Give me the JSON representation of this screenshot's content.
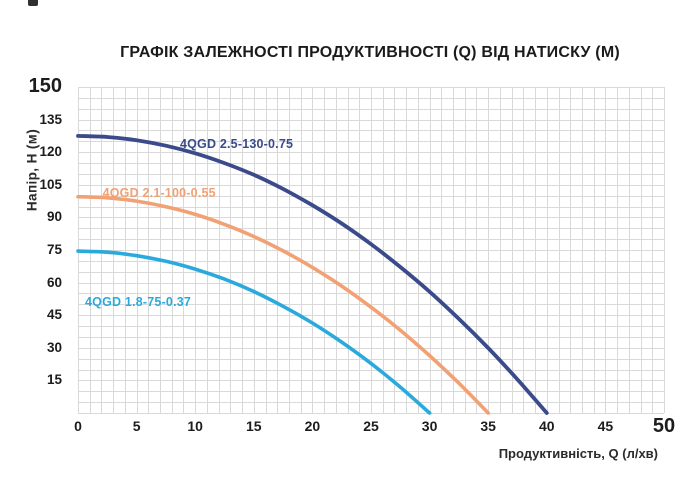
{
  "decorations": {
    "top_left_mark_color": "#2f2f2f"
  },
  "chart_data": {
    "type": "line",
    "title": "ГРАФІК ЗАЛЕЖНОСТІ ПРОДУКТИВНОСТІ (Q) ВІД НАТИСКУ (М)",
    "xlabel": "Продуктивність, Q (л/хв)",
    "ylabel": "Напір, H (м)",
    "xlim": [
      0,
      50
    ],
    "ylim": [
      0,
      150
    ],
    "x_ticks": [
      0,
      5,
      10,
      15,
      20,
      25,
      30,
      35,
      40,
      45,
      50
    ],
    "y_ticks": [
      15,
      30,
      45,
      60,
      75,
      90,
      105,
      120,
      135,
      150
    ],
    "x_tick_emphasized": 50,
    "y_tick_emphasized": 150,
    "x_minor_step": 1,
    "y_minor_step": 5,
    "grid": true,
    "grid_color": "#d9d9d9",
    "legend_position": "inline-labels",
    "series": [
      {
        "name": "4QGD 2.5-130-0.75",
        "color": "#3a4a8a",
        "stroke_width": 3.8,
        "label_pos": [
          8.7,
          124
        ],
        "points": [
          [
            0,
            127.5
          ],
          [
            2.5,
            127.0
          ],
          [
            5,
            125.5
          ],
          [
            7.5,
            123.0
          ],
          [
            10,
            119.5
          ],
          [
            12.5,
            115.0
          ],
          [
            15,
            109.6
          ],
          [
            17.5,
            103.1
          ],
          [
            20,
            95.6
          ],
          [
            22.5,
            87.2
          ],
          [
            25,
            77.7
          ],
          [
            27.5,
            67.2
          ],
          [
            30,
            55.8
          ],
          [
            32.5,
            43.3
          ],
          [
            35,
            29.9
          ],
          [
            37.5,
            15.4
          ],
          [
            40,
            0
          ]
        ]
      },
      {
        "name": "4QGD 2.1-100-0.55",
        "color": "#f1a173",
        "stroke_width": 3.6,
        "label_pos": [
          2.1,
          101
        ],
        "points": [
          [
            0,
            99.5
          ],
          [
            2.5,
            99.0
          ],
          [
            5,
            97.5
          ],
          [
            7.5,
            94.9
          ],
          [
            10,
            91.4
          ],
          [
            12.5,
            86.8
          ],
          [
            15,
            81.2
          ],
          [
            17.5,
            74.6
          ],
          [
            20,
            67.0
          ],
          [
            22.5,
            58.4
          ],
          [
            25,
            48.7
          ],
          [
            27.5,
            38.1
          ],
          [
            30,
            26.4
          ],
          [
            32.5,
            13.7
          ],
          [
            35,
            0
          ]
        ]
      },
      {
        "name": "4QGD 1.8-75-0.37",
        "color": "#2aaadc",
        "stroke_width": 3.6,
        "label_pos": [
          0.6,
          51
        ],
        "points": [
          [
            0,
            74.5
          ],
          [
            2.5,
            74.0
          ],
          [
            5,
            72.4
          ],
          [
            7.5,
            69.8
          ],
          [
            10,
            66.2
          ],
          [
            12.5,
            61.6
          ],
          [
            15,
            55.9
          ],
          [
            17.5,
            49.1
          ],
          [
            20,
            41.4
          ],
          [
            22.5,
            32.6
          ],
          [
            25,
            22.8
          ],
          [
            27.5,
            11.9
          ],
          [
            30,
            0
          ]
        ]
      }
    ]
  }
}
